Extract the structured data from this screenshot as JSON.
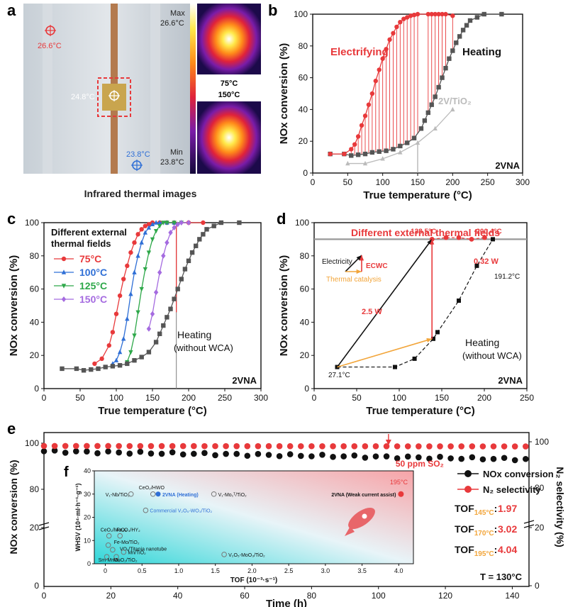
{
  "panel_labels": {
    "a": "a",
    "b": "b",
    "c": "c",
    "d": "d",
    "e": "e",
    "f": "f"
  },
  "colors": {
    "red": "#e8393b",
    "gray": "#555555",
    "light_gray": "#bbbbbb",
    "black": "#111111",
    "blue": "#2f6fd6",
    "green": "#2ea84a",
    "purple": "#a56be0",
    "orange": "#f2a53a"
  },
  "panel_a": {
    "caption": "Infrared thermal images",
    "hot_spot": "26.6°C",
    "center_spot": "24.8°C",
    "cold_spot": "23.8°C",
    "colorbar_max_label": "Max",
    "colorbar_max": "26.6°C",
    "colorbar_min_label": "Min",
    "colorbar_min": "23.8°C",
    "thermal_top_caption": "75°C",
    "thermal_bottom_caption": "150°C"
  },
  "chart_data": [
    {
      "id": "b",
      "type": "line",
      "xlabel": "True temperature (°C)",
      "ylabel": "NOx conversion (%)",
      "xlim": [
        0,
        300
      ],
      "ylim": [
        0,
        100
      ],
      "xticks": [
        0,
        50,
        100,
        150,
        200,
        250,
        300
      ],
      "yticks": [
        0,
        20,
        40,
        60,
        80,
        100
      ],
      "catalyst": "2VNA",
      "annotations": {
        "electrifying": "Electrifying",
        "heating": "Heating",
        "support": "2V/TiO₂"
      },
      "series": [
        {
          "name": "Electrifying",
          "color": "#e8393b",
          "marker": "circle",
          "x": [
            25,
            45,
            55,
            60,
            65,
            70,
            75,
            80,
            85,
            90,
            95,
            100,
            105,
            110,
            115,
            120,
            125,
            130,
            135,
            140,
            145,
            150,
            165,
            170,
            175,
            180,
            185,
            190,
            200
          ],
          "y": [
            12,
            12,
            15,
            18,
            23,
            30,
            36,
            43,
            50,
            58,
            65,
            72,
            78,
            84,
            88,
            92,
            95,
            97,
            98,
            99,
            99.5,
            100,
            100,
            100,
            100,
            100,
            100,
            100,
            99
          ]
        },
        {
          "name": "Heating",
          "color": "#555555",
          "marker": "square",
          "x": [
            25,
            45,
            55,
            65,
            75,
            85,
            95,
            105,
            115,
            125,
            135,
            145,
            155,
            160,
            165,
            170,
            175,
            180,
            185,
            190,
            195,
            200,
            205,
            210,
            215,
            220,
            225,
            235,
            245,
            270
          ],
          "y": [
            12,
            12,
            11,
            11.5,
            12,
            13,
            13.5,
            14,
            15,
            17,
            19,
            22,
            28,
            33,
            38,
            43,
            48,
            54,
            60,
            66,
            72,
            77,
            82,
            86,
            90,
            93,
            96,
            98,
            100,
            100
          ]
        },
        {
          "name": "2V/TiO₂",
          "color": "#bbbbbb",
          "marker": "triangle",
          "x": [
            50,
            75,
            100,
            125,
            150,
            175,
            200
          ],
          "y": [
            6,
            6,
            9,
            13,
            19,
            28,
            40
          ]
        }
      ],
      "vline_x": 150
    },
    {
      "id": "c",
      "type": "line",
      "xlabel": "True temperature (°C)",
      "ylabel": "NOx conversion (%)",
      "xlim": [
        0,
        300
      ],
      "ylim": [
        0,
        100
      ],
      "xticks": [
        0,
        50,
        100,
        150,
        200,
        250,
        300
      ],
      "yticks": [
        0,
        20,
        40,
        60,
        80,
        100
      ],
      "title": "Different external\nthermal fields",
      "catalyst": "2VNA",
      "heating_label": "Heating",
      "heating_sub": "(without WCA)",
      "series": [
        {
          "name": "75°C",
          "color": "#e8393b",
          "marker": "circle",
          "x": [
            70,
            80,
            90,
            95,
            100,
            105,
            110,
            115,
            120,
            125,
            130,
            135,
            140,
            145,
            150,
            160,
            170,
            180,
            200,
            220
          ],
          "y": [
            15,
            18,
            26,
            34,
            45,
            56,
            66,
            74,
            82,
            88,
            93,
            96,
            98,
            99,
            100,
            100,
            100,
            100,
            100,
            100
          ]
        },
        {
          "name": "100°C",
          "color": "#2f6fd6",
          "marker": "triangle",
          "x": [
            95,
            100,
            105,
            110,
            115,
            120,
            125,
            130,
            135,
            140,
            145,
            150,
            155,
            160,
            170,
            180
          ],
          "y": [
            15,
            17,
            22,
            30,
            42,
            57,
            70,
            80,
            88,
            94,
            97,
            99,
            100,
            100,
            100,
            100
          ]
        },
        {
          "name": "125°C",
          "color": "#2ea84a",
          "marker": "triangle-down",
          "x": [
            115,
            120,
            125,
            130,
            135,
            140,
            145,
            150,
            155,
            160,
            165,
            170,
            180,
            190
          ],
          "y": [
            16,
            22,
            32,
            46,
            60,
            72,
            82,
            90,
            95,
            98,
            100,
            100,
            100,
            100
          ]
        },
        {
          "name": "150°C",
          "color": "#a56be0",
          "marker": "diamond",
          "x": [
            145,
            150,
            155,
            160,
            165,
            170,
            175,
            180,
            185,
            190,
            200
          ],
          "y": [
            36,
            45,
            58,
            70,
            80,
            88,
            94,
            97,
            99,
            100,
            100
          ]
        },
        {
          "name": "Heating",
          "color": "#555555",
          "marker": "square",
          "x": [
            25,
            45,
            55,
            65,
            75,
            85,
            95,
            105,
            115,
            125,
            135,
            145,
            155,
            160,
            165,
            170,
            175,
            180,
            185,
            190,
            195,
            200,
            205,
            210,
            215,
            220,
            225,
            235,
            245,
            270
          ],
          "y": [
            12,
            12,
            11,
            11.5,
            12,
            13,
            13.5,
            14,
            15,
            17,
            19,
            22,
            28,
            33,
            38,
            43,
            48,
            54,
            60,
            66,
            72,
            77,
            82,
            86,
            90,
            93,
            96,
            98,
            100,
            100
          ]
        }
      ],
      "vline_x": 183
    },
    {
      "id": "d",
      "type": "line",
      "xlabel": "True temperature (°C)",
      "ylabel": "NOx conversion (%)",
      "xlim": [
        0,
        250
      ],
      "ylim": [
        0,
        100
      ],
      "xticks": [
        0,
        50,
        100,
        150,
        200,
        250
      ],
      "yticks": [
        0,
        20,
        40,
        60,
        80,
        100
      ],
      "title": "Different external thermal fields",
      "catalyst": "2VNA",
      "heating_label": "Heating",
      "heating_sub": "(without WCA)",
      "hline_y": 90,
      "series": [
        {
          "name": "Heating",
          "color": "#111111",
          "marker": "square",
          "x": [
            27.1,
            95,
            118,
            140,
            145,
            170,
            191.2,
            210
          ],
          "y": [
            13,
            13,
            18,
            30,
            34,
            53,
            74,
            90
          ]
        },
        {
          "name": "ECWC",
          "color": "#e8393b",
          "marker": "circle",
          "x": [
            138.5,
            155,
            170,
            185,
            200.4
          ],
          "y": [
            90,
            91,
            91,
            90,
            91
          ]
        }
      ],
      "labels": {
        "t1": "27.1°C",
        "t2": "138.5°C",
        "t3": "200.4°C",
        "t4": "191.2°C",
        "p1": "2.5 W",
        "p2": "0.32 W",
        "legend_electricity": "Electricity",
        "legend_thermal": "Thermal catalysis",
        "legend_ecwc": "ECWC"
      }
    },
    {
      "id": "e",
      "type": "scatter",
      "xlabel": "Time (h)",
      "ylabel": "NOx conversion (%)",
      "ylabel_right": "N₂ selectivity (%)",
      "xlim": [
        0,
        145
      ],
      "xticks": [
        0,
        20,
        40,
        60,
        80,
        100,
        120,
        140
      ],
      "yticks_left": [
        "20",
        "80",
        "100"
      ],
      "yticks_right": [
        "0",
        "20",
        "80",
        "100"
      ],
      "so2_label": "50 ppm SO₂",
      "so2_time": 103,
      "temperature": "T = 130°C",
      "legend": [
        "NOx conversion",
        "N₂ selectivity"
      ],
      "tof": [
        {
          "label": "TOF",
          "sub": "145°C",
          "value": "1.97"
        },
        {
          "label": "TOF",
          "sub": "170°C",
          "value": "3.02"
        },
        {
          "label": "TOF",
          "sub": "195°C",
          "value": "4.04"
        }
      ],
      "series": [
        {
          "name": "NOx conversion",
          "color": "#111111",
          "y_start": 96.5,
          "y_end": 93
        },
        {
          "name": "N₂ selectivity",
          "color": "#e8393b",
          "y_start": 98.8,
          "y_end": 98.6
        }
      ]
    },
    {
      "id": "f",
      "type": "scatter",
      "xlabel": "TOF (10⁻³·s⁻¹)",
      "ylabel": "WHSV (10⁴·ml·h⁻¹·g⁻¹)",
      "xlim": [
        -0.15,
        4.2
      ],
      "ylim": [
        0,
        40
      ],
      "xticks": [
        0,
        0.5,
        1.0,
        1.5,
        2.0,
        2.5,
        3.0,
        3.5,
        4.0
      ],
      "yticks": [
        0,
        10,
        20,
        30,
        40
      ],
      "temp_label": "195°C",
      "points": [
        {
          "label": "V₁-Nb/TiO₂",
          "x": 0.35,
          "y": 30
        },
        {
          "label": "CeO₂/HWO",
          "x": 0.65,
          "y": 30
        },
        {
          "label": "2VNA (Heating)",
          "x": 0.72,
          "y": 30,
          "highlight": true
        },
        {
          "label": "V₁-Mo₁ᵀ/TiO₂",
          "x": 1.48,
          "y": 30
        },
        {
          "label": "Commercial V₂O₅-WO₃/TiO₂",
          "x": 0.55,
          "y": 23
        },
        {
          "label": "CeO₂/MoO₃",
          "x": 0.05,
          "y": 12
        },
        {
          "label": "Fe₂O₃/HY₂",
          "x": 0.2,
          "y": 12
        },
        {
          "label": "Fe-Mo/TiO₂",
          "x": 0.04,
          "y": 8
        },
        {
          "label": "VOₓ/Titania nanotube",
          "x": 0.1,
          "y": 6
        },
        {
          "label": "Mn/TiO₂",
          "x": 0.25,
          "y": 5
        },
        {
          "label": "Sm-MnOₓ",
          "x": 0.02,
          "y": 3
        },
        {
          "label": "MnO₂/TiO₂",
          "x": 0.15,
          "y": 3
        },
        {
          "label": "V₂O₅-MoO₃/TiO₂",
          "x": 1.62,
          "y": 4
        },
        {
          "label": "2VNA (Weak current assist)",
          "x": 4.03,
          "y": 30,
          "red": true
        }
      ]
    }
  ]
}
